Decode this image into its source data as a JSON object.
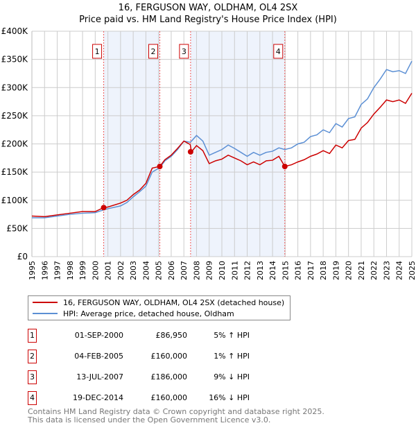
{
  "chart_data": {
    "type": "line",
    "title": "16, FERGUSON WAY, OLDHAM, OL4 2SX",
    "subtitle": "Price paid vs. HM Land Registry's House Price Index (HPI)",
    "xlim": [
      1995,
      2025
    ],
    "ylim": [
      0,
      400000
    ],
    "x_ticks": [
      "1995",
      "1996",
      "1997",
      "1998",
      "1999",
      "2000",
      "2001",
      "2002",
      "2003",
      "2004",
      "2005",
      "2006",
      "2007",
      "2008",
      "2009",
      "2010",
      "2011",
      "2012",
      "2013",
      "2014",
      "2015",
      "2016",
      "2017",
      "2018",
      "2019",
      "2020",
      "2021",
      "2022",
      "2023",
      "2024",
      "2025"
    ],
    "y_ticks": [
      {
        "v": 0,
        "l": "£0"
      },
      {
        "v": 50000,
        "l": "£50K"
      },
      {
        "v": 100000,
        "l": "£100K"
      },
      {
        "v": 150000,
        "l": "£150K"
      },
      {
        "v": 200000,
        "l": "£200K"
      },
      {
        "v": 250000,
        "l": "£250K"
      },
      {
        "v": 300000,
        "l": "£300K"
      },
      {
        "v": 350000,
        "l": "£350K"
      },
      {
        "v": 400000,
        "l": "£400K"
      }
    ],
    "grid": true,
    "x": [
      1995,
      1996,
      1997,
      1998,
      1999,
      2000,
      2000.67,
      2001,
      2002,
      2002.5,
      2003,
      2003.5,
      2004,
      2004.5,
      2005.1,
      2005.5,
      2006,
      2006.5,
      2007,
      2007.5,
      2007.6,
      2008,
      2008.5,
      2009,
      2009.5,
      2010,
      2010.5,
      2011,
      2011.5,
      2012,
      2012.5,
      2013,
      2013.5,
      2014,
      2014.5,
      2014.97,
      2015.5,
      2016,
      2016.5,
      2017,
      2017.5,
      2018,
      2018.5,
      2019,
      2019.5,
      2020,
      2020.5,
      2021,
      2021.5,
      2022,
      2022.5,
      2023,
      2023.5,
      2024,
      2024.5,
      2025
    ],
    "series": [
      {
        "name": "16, FERGUSON WAY, OLDHAM, OL4 2SX (detached house)",
        "color": "#cc0000",
        "values": [
          72,
          71,
          74,
          77,
          80,
          80,
          87,
          88,
          95,
          100,
          110,
          118,
          130,
          157,
          160,
          172,
          180,
          192,
          205,
          199,
          186,
          197,
          188,
          165,
          170,
          173,
          180,
          175,
          170,
          163,
          168,
          163,
          170,
          171,
          178,
          160,
          163,
          168,
          172,
          178,
          182,
          188,
          183,
          198,
          193,
          206,
          208,
          228,
          238,
          253,
          265,
          278,
          275,
          278,
          272,
          290
        ]
      },
      {
        "name": "HPI: Average price, detached house, Oldham",
        "color": "#5b8fd4",
        "values": [
          69,
          69,
          72,
          75,
          77,
          78,
          83,
          85,
          90,
          96,
          106,
          115,
          125,
          150,
          158,
          170,
          178,
          190,
          205,
          203,
          205,
          215,
          205,
          180,
          185,
          190,
          198,
          192,
          185,
          178,
          185,
          180,
          185,
          187,
          193,
          190,
          193,
          200,
          203,
          213,
          216,
          225,
          220,
          236,
          230,
          245,
          248,
          270,
          280,
          300,
          315,
          332,
          328,
          330,
          325,
          347
        ]
      }
    ],
    "value_unit": "£K",
    "shaded_ranges": [
      [
        2000.67,
        2005.1
      ],
      [
        2007.53,
        2014.97
      ]
    ],
    "sales": [
      {
        "num": "1",
        "x": 2000.67,
        "value": 86950,
        "date": "01-SEP-2000",
        "price": "£86,950",
        "hpi": "5% ↑ HPI"
      },
      {
        "num": "2",
        "x": 2005.1,
        "value": 160000,
        "date": "04-FEB-2005",
        "price": "£160,000",
        "hpi": "1% ↑ HPI"
      },
      {
        "num": "3",
        "x": 2007.53,
        "value": 186000,
        "date": "13-JUL-2007",
        "price": "£186,000",
        "hpi": "9% ↓ HPI"
      },
      {
        "num": "4",
        "x": 2014.97,
        "value": 160000,
        "date": "19-DEC-2014",
        "price": "£160,000",
        "hpi": "16% ↓ HPI"
      }
    ]
  },
  "footer": {
    "line1": "Contains HM Land Registry data © Crown copyright and database right 2025.",
    "line2": "This data is licensed under the Open Government Licence v3.0."
  }
}
